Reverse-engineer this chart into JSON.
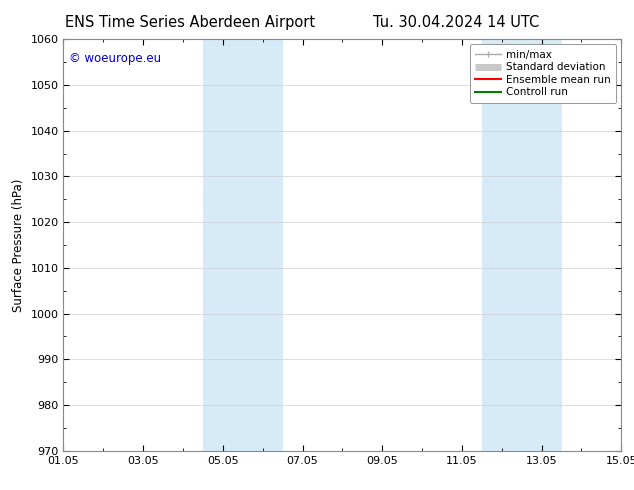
{
  "title_left": "ENS Time Series Aberdeen Airport",
  "title_right": "Tu. 30.04.2024 14 UTC",
  "ylabel": "Surface Pressure (hPa)",
  "ylim": [
    970,
    1060
  ],
  "yticks": [
    970,
    980,
    990,
    1000,
    1010,
    1020,
    1030,
    1040,
    1050,
    1060
  ],
  "x_start_days": 0,
  "x_end_days": 14,
  "xtick_day_positions": [
    0,
    2,
    4,
    6,
    8,
    10,
    12,
    14
  ],
  "xtick_labels": [
    "01.05",
    "03.05",
    "05.05",
    "07.05",
    "09.05",
    "11.05",
    "13.05",
    "15.05"
  ],
  "shaded_bands": [
    {
      "xmin_days": 3.5,
      "xmax_days": 5.5
    },
    {
      "xmin_days": 10.5,
      "xmax_days": 12.5
    }
  ],
  "shaded_color": "#d6eaf8",
  "watermark": "© woeurope.eu",
  "watermark_color": "#0000cc",
  "background_color": "#ffffff",
  "legend_entries": [
    {
      "label": "min/max",
      "color": "#aaaaaa",
      "linewidth": 1.0
    },
    {
      "label": "Standard deviation",
      "color": "#c8c8c8",
      "linewidth": 5
    },
    {
      "label": "Ensemble mean run",
      "color": "#ff0000",
      "linewidth": 1.5
    },
    {
      "label": "Controll run",
      "color": "#008000",
      "linewidth": 1.5
    }
  ],
  "title_fontsize": 10.5,
  "axis_label_fontsize": 8.5,
  "tick_fontsize": 8,
  "legend_fontsize": 7.5,
  "watermark_fontsize": 8.5
}
